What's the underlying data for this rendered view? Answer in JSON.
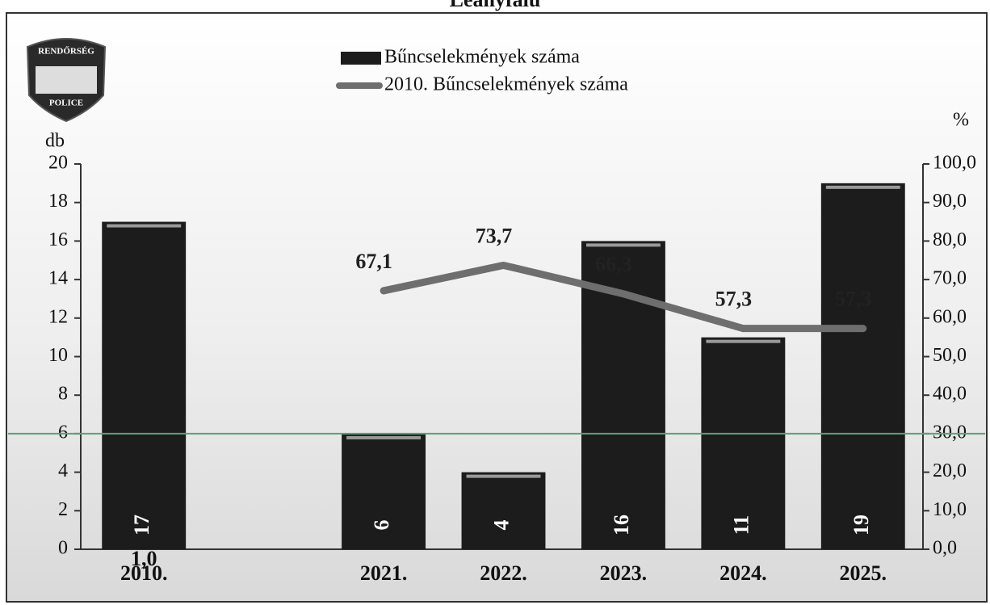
{
  "logo": {
    "top": "RENDŐRSÉG",
    "bottom": "POLICE"
  },
  "chart_data": {
    "type": "bar-line",
    "title": "Leányfalu",
    "annotation": "1,0",
    "categories": [
      "2010.",
      null,
      "2021.",
      "2022.",
      "2023.",
      "2024.",
      "2025."
    ],
    "y_label": "db",
    "y2_label": "%",
    "ylim": [
      0,
      20
    ],
    "yticks": [
      0,
      2,
      4,
      6,
      8,
      10,
      12,
      14,
      16,
      18,
      20
    ],
    "y2lim": [
      0,
      100
    ],
    "y2ticks": [
      {
        "value": 0,
        "label": "0,0"
      },
      {
        "value": 10,
        "label": "10,0"
      },
      {
        "value": 20,
        "label": "20,0"
      },
      {
        "value": 30,
        "label": "30,0"
      },
      {
        "value": 40,
        "label": "40,0"
      },
      {
        "value": 50,
        "label": "50,0"
      },
      {
        "value": 60,
        "label": "60,0"
      },
      {
        "value": 70,
        "label": "70,0"
      },
      {
        "value": 80,
        "label": "80,0"
      },
      {
        "value": 90,
        "label": "90,0"
      },
      {
        "value": 100,
        "label": "100,0"
      }
    ],
    "reference_line": {
      "value": 6,
      "color": "#5f9e7a"
    },
    "series": [
      {
        "name": "Bűncselekmények száma",
        "type": "bar",
        "color": "#1c1c1c",
        "values": [
          17,
          null,
          6,
          4,
          16,
          11,
          19
        ]
      },
      {
        "name": "2010. Bűncselekmények száma",
        "type": "line",
        "axis": "y2",
        "color": "#6e6e6e",
        "values": [
          null,
          null,
          67.1,
          73.7,
          66.3,
          57.3,
          57.3
        ],
        "value_labels": [
          null,
          null,
          "67,1",
          "73,7",
          "66,3",
          "57,3",
          "57,3"
        ]
      }
    ]
  }
}
